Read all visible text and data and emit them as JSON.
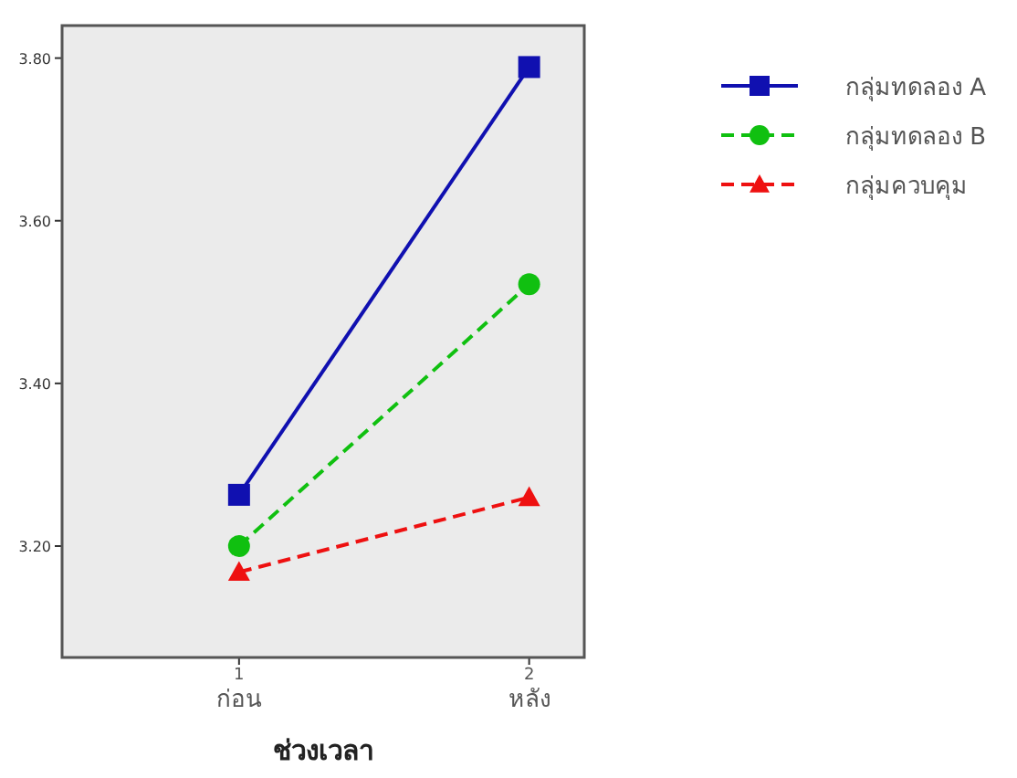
{
  "chart_data": {
    "type": "line",
    "xlabel": "ช่วงเวลา",
    "categories": [
      "1\nก่อน",
      "2\nหลัง"
    ],
    "ylim": [
      3.063,
      3.84
    ],
    "yticks": [
      {
        "value": 3.2,
        "label": "3.20"
      },
      {
        "value": 3.4,
        "label": "3.40"
      },
      {
        "value": 3.6,
        "label": "3.60"
      },
      {
        "value": 3.8,
        "label": "3.80"
      }
    ],
    "legend": "right",
    "grid": false,
    "series": [
      {
        "name": "กลุ่มทดลอง A",
        "color": "#1010b0",
        "values": [
          3.263,
          3.789
        ],
        "marker": "square",
        "line_style": "solid"
      },
      {
        "name": "กลุ่มทดลอง B",
        "color": "#10c010",
        "values": [
          3.2,
          3.522
        ],
        "marker": "circle",
        "line_style": "dashed"
      },
      {
        "name": "กลุ่มควบคุม",
        "color": "#ee1010",
        "values": [
          3.168,
          3.26
        ],
        "marker": "triangle",
        "line_style": "dashed"
      }
    ]
  }
}
